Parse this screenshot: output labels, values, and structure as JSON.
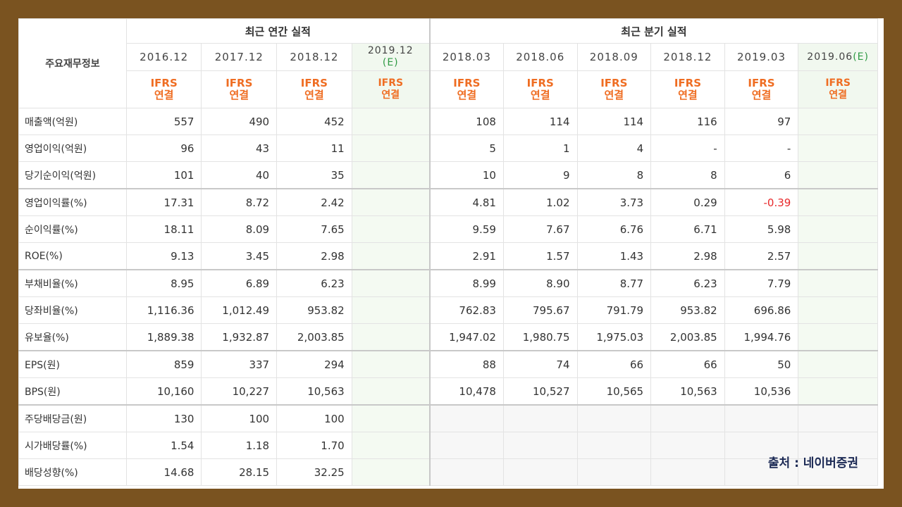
{
  "table": {
    "label_header": "주요재무정보",
    "annual_group": "최근 연간 실적",
    "quarter_group": "최근 분기 실적",
    "annual_periods": [
      "2016.12",
      "2017.12",
      "2018.12"
    ],
    "annual_estimate": {
      "period": "2019.12",
      "mark": "(E)"
    },
    "quarter_periods": [
      "2018.03",
      "2018.06",
      "2018.09",
      "2018.12",
      "2019.03"
    ],
    "quarter_estimate": {
      "period": "2019.06",
      "mark": "(E)"
    },
    "ifrs_top": "IFRS",
    "ifrs_bottom": "연결",
    "rows": [
      {
        "label": "매출액(억원)",
        "annual": [
          "557",
          "490",
          "452"
        ],
        "quarter": [
          "108",
          "114",
          "114",
          "116",
          "97"
        ]
      },
      {
        "label": "영업이익(억원)",
        "annual": [
          "96",
          "43",
          "11"
        ],
        "quarter": [
          "5",
          "1",
          "4",
          "-",
          "-"
        ]
      },
      {
        "label": "당기순이익(억원)",
        "annual": [
          "101",
          "40",
          "35"
        ],
        "quarter": [
          "10",
          "9",
          "8",
          "8",
          "6"
        ]
      },
      {
        "label": "영업이익률(%)",
        "annual": [
          "17.31",
          "8.72",
          "2.42"
        ],
        "quarter": [
          "4.81",
          "1.02",
          "3.73",
          "0.29",
          "-0.39"
        ]
      },
      {
        "label": "순이익률(%)",
        "annual": [
          "18.11",
          "8.09",
          "7.65"
        ],
        "quarter": [
          "9.59",
          "7.67",
          "6.76",
          "6.71",
          "5.98"
        ]
      },
      {
        "label": "ROE(%)",
        "annual": [
          "9.13",
          "3.45",
          "2.98"
        ],
        "quarter": [
          "2.91",
          "1.57",
          "1.43",
          "2.98",
          "2.57"
        ]
      },
      {
        "label": "부채비율(%)",
        "annual": [
          "8.95",
          "6.89",
          "6.23"
        ],
        "quarter": [
          "8.99",
          "8.90",
          "8.77",
          "6.23",
          "7.79"
        ]
      },
      {
        "label": "당좌비율(%)",
        "annual": [
          "1,116.36",
          "1,012.49",
          "953.82"
        ],
        "quarter": [
          "762.83",
          "795.67",
          "791.79",
          "953.82",
          "696.86"
        ]
      },
      {
        "label": "유보율(%)",
        "annual": [
          "1,889.38",
          "1,932.87",
          "2,003.85"
        ],
        "quarter": [
          "1,947.02",
          "1,980.75",
          "1,975.03",
          "2,003.85",
          "1,994.76"
        ]
      },
      {
        "label": "EPS(원)",
        "annual": [
          "859",
          "337",
          "294"
        ],
        "quarter": [
          "88",
          "74",
          "66",
          "66",
          "50"
        ]
      },
      {
        "label": "BPS(원)",
        "annual": [
          "10,160",
          "10,227",
          "10,563"
        ],
        "quarter": [
          "10,478",
          "10,527",
          "10,565",
          "10,563",
          "10,536"
        ]
      },
      {
        "label": "주당배당금(원)",
        "annual": [
          "130",
          "100",
          "100"
        ],
        "quarter": [
          "",
          "",
          "",
          "",
          ""
        ]
      },
      {
        "label": "시가배당률(%)",
        "annual": [
          "1.54",
          "1.18",
          "1.70"
        ],
        "quarter": [
          "",
          "",
          "",
          "",
          ""
        ]
      },
      {
        "label": "배당성향(%)",
        "annual": [
          "14.68",
          "28.15",
          "32.25"
        ],
        "quarter": [
          "",
          "",
          "",
          "",
          ""
        ]
      }
    ]
  },
  "source": "출처 : 네이버증권",
  "colors": {
    "negative": "#e8292b",
    "ifrs": "#ef6d22",
    "estimate_mark": "#2f9a44",
    "frame": "#7a5320"
  }
}
